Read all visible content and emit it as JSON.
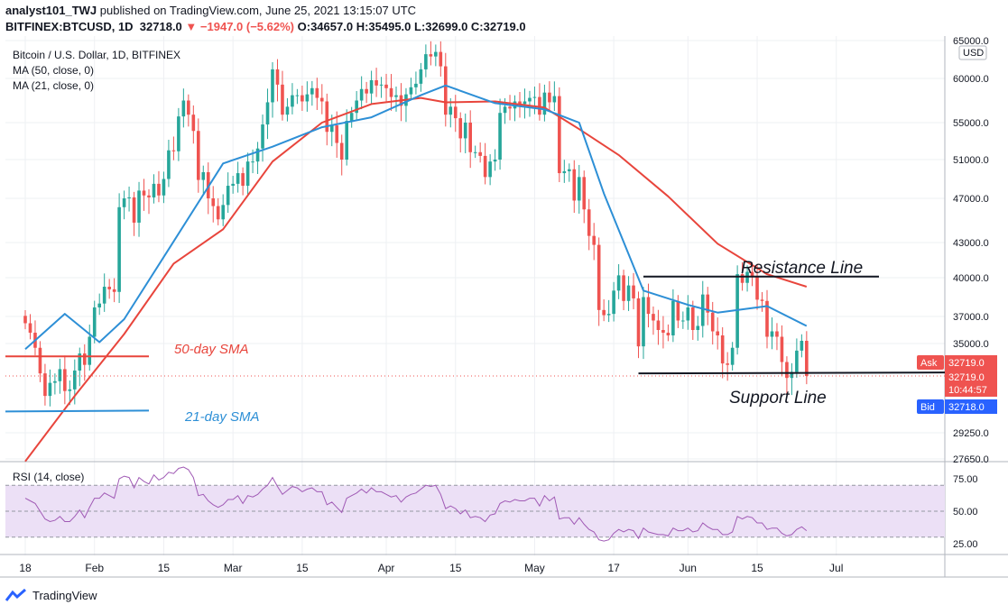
{
  "header": {
    "username": "analyst101_TWJ",
    "published_text": "published on TradingView.com, June 25, 2021 13:15:07 UTC",
    "symbol": "BITFINEX:BTCUSD, 1D",
    "price": "32718.0",
    "change": "−1947.0 (−5.62%)",
    "open": "O:34657.0",
    "high": "H:35495.0",
    "low": "L:32699.0",
    "close": "C:32719.0"
  },
  "legend": {
    "title": "Bitcoin / U.S. Dollar, 1D, BITFINEX",
    "ma50": "MA (50, close, 0)",
    "ma21": "MA (21, close, 0)"
  },
  "annotations": {
    "sma50": "50-day SMA",
    "sma21": "21-day SMA",
    "resistance": "Resistance Line",
    "support": "Support Line"
  },
  "colors": {
    "up": "#26a69a",
    "down": "#ef5350",
    "ma50": "#e8453c",
    "ma21": "#2d8fd6",
    "rsi": "#a05ab5",
    "rsi_band": "#ece0f6"
  },
  "price_badges": {
    "ask_label": "Ask",
    "ask_value": "32719.0",
    "last_value": "32719.0",
    "countdown": "10:44:57",
    "bid_label": "Bid",
    "bid_value": "32718.0"
  },
  "footer": {
    "brand": "TradingView"
  },
  "chart_data": {
    "type": "candlestick",
    "currency": "USD",
    "y_ticks": [
      "65000.0",
      "60000.0",
      "55000.0",
      "51000.0",
      "47000.0",
      "43000.0",
      "40000.0",
      "37000.0",
      "35000.0",
      "32719.0",
      "29250.0",
      "27650.0"
    ],
    "y_tick_values": [
      65000,
      60000,
      55000,
      51000,
      47000,
      43000,
      40000,
      37000,
      35000,
      32719,
      29250,
      27650
    ],
    "x_ticks": [
      "18",
      "Feb",
      "15",
      "Mar",
      "15",
      "Apr",
      "15",
      "May",
      "17",
      "Jun",
      "15",
      "Jul"
    ],
    "x_tick_dates": [
      "2021-01-18",
      "2021-02-01",
      "2021-02-15",
      "2021-03-01",
      "2021-03-15",
      "2021-04-01",
      "2021-04-15",
      "2021-05-01",
      "2021-05-17",
      "2021-06-01",
      "2021-06-15",
      "2021-07-01"
    ],
    "start_date": "2021-01-18",
    "closes": [
      36500,
      35800,
      34700,
      32900,
      31500,
      32300,
      32400,
      33200,
      31800,
      31900,
      33100,
      34300,
      33500,
      35500,
      37700,
      38000,
      39300,
      39100,
      38900,
      46200,
      47000,
      47100,
      44800,
      47800,
      47300,
      47100,
      48500,
      47300,
      49000,
      52000,
      51900,
      55700,
      57500,
      55900,
      54100,
      48900,
      49700,
      47000,
      46300,
      45100,
      46400,
      48300,
      48500,
      49600,
      48300,
      50800,
      50800,
      52200,
      54800,
      57300,
      61200,
      59300,
      55900,
      56800,
      58100,
      58100,
      57400,
      58200,
      58900,
      57800,
      57400,
      54000,
      54700,
      52800,
      51000,
      55200,
      56100,
      57500,
      58800,
      58300,
      59800,
      59200,
      59300,
      58900,
      57900,
      58100,
      56900,
      58200,
      59000,
      59400,
      61200,
      63200,
      62900,
      63500,
      61600,
      55900,
      56800,
      55500,
      53300,
      55000,
      51800,
      51800,
      51400,
      49200,
      50800,
      51000,
      56100,
      56800,
      56600,
      57400,
      57100,
      57400,
      57800,
      57900,
      55900,
      58400,
      57300,
      58000,
      49600,
      49800,
      50000,
      46800,
      49200,
      46000,
      43600,
      42800,
      37500,
      37100,
      37200,
      39000,
      40200,
      38200,
      39400,
      38400,
      34800,
      38500,
      37200,
      36700,
      36000,
      35800,
      35600,
      38200,
      36700,
      36700,
      37700,
      36000,
      36300,
      38700,
      37300,
      35900,
      35600,
      33600,
      33500,
      34700,
      40300,
      39600,
      40500,
      40100,
      38300,
      38200,
      35500,
      35900,
      35500,
      33700,
      32600,
      33000,
      34500,
      35200,
      32719
    ],
    "ma21_sample": [
      [
        0,
        34600
      ],
      [
        8,
        37200
      ],
      [
        15,
        35100
      ],
      [
        20,
        36800
      ],
      [
        30,
        43100
      ],
      [
        40,
        50600
      ],
      [
        50,
        52400
      ],
      [
        60,
        54500
      ],
      [
        70,
        55600
      ],
      [
        80,
        58100
      ],
      [
        85,
        59200
      ],
      [
        95,
        57200
      ],
      [
        105,
        56500
      ],
      [
        112,
        55000
      ],
      [
        117,
        47500
      ],
      [
        125,
        39000
      ],
      [
        134,
        37900
      ],
      [
        140,
        37300
      ],
      [
        150,
        37800
      ],
      [
        158,
        36300
      ]
    ],
    "ma50_sample": [
      [
        0,
        27500
      ],
      [
        10,
        31500
      ],
      [
        20,
        35700
      ],
      [
        30,
        41200
      ],
      [
        40,
        44200
      ],
      [
        50,
        50800
      ],
      [
        60,
        55000
      ],
      [
        70,
        57100
      ],
      [
        80,
        57800
      ],
      [
        85,
        57300
      ],
      [
        95,
        57400
      ],
      [
        105,
        56700
      ],
      [
        112,
        54300
      ],
      [
        120,
        51500
      ],
      [
        130,
        47200
      ],
      [
        140,
        42900
      ],
      [
        150,
        40300
      ],
      [
        158,
        39300
      ]
    ],
    "resistance_level": 40100,
    "support_level": 32900,
    "sma50_guide_level": 34100,
    "sma21_guide_level": 30550,
    "rsi": {
      "label": "RSI (14, close)",
      "y_ticks": [
        "75.00",
        "50.00",
        "25.00"
      ],
      "y_tick_values": [
        75,
        50,
        25
      ],
      "upper_band": 70,
      "lower_band": 30,
      "values": [
        60,
        58,
        56,
        50,
        44,
        42,
        43,
        46,
        42,
        42,
        46,
        51,
        45,
        53,
        60,
        60,
        64,
        62,
        60,
        75,
        77,
        76,
        68,
        76,
        73,
        71,
        78,
        74,
        76,
        80,
        79,
        83,
        84,
        82,
        76,
        62,
        63,
        58,
        55,
        53,
        55,
        59,
        59,
        62,
        56,
        62,
        61,
        63,
        67,
        70,
        76,
        69,
        63,
        66,
        69,
        68,
        65,
        67,
        68,
        65,
        65,
        55,
        57,
        53,
        49,
        60,
        62,
        64,
        67,
        64,
        68,
        65,
        65,
        63,
        61,
        62,
        57,
        61,
        63,
        64,
        67,
        70,
        69,
        70,
        63,
        52,
        54,
        52,
        48,
        51,
        45,
        46,
        45,
        42,
        47,
        48,
        56,
        58,
        57,
        59,
        58,
        58,
        60,
        60,
        54,
        62,
        58,
        61,
        44,
        45,
        45,
        40,
        45,
        40,
        36,
        34,
        28,
        27,
        28,
        33,
        36,
        34,
        36,
        35,
        29,
        37,
        34,
        33,
        32,
        32,
        31,
        37,
        35,
        35,
        37,
        34,
        35,
        41,
        38,
        36,
        36,
        32,
        32,
        34,
        46,
        44,
        46,
        45,
        41,
        41,
        36,
        37,
        37,
        33,
        31,
        32,
        36,
        38,
        35
      ]
    }
  }
}
